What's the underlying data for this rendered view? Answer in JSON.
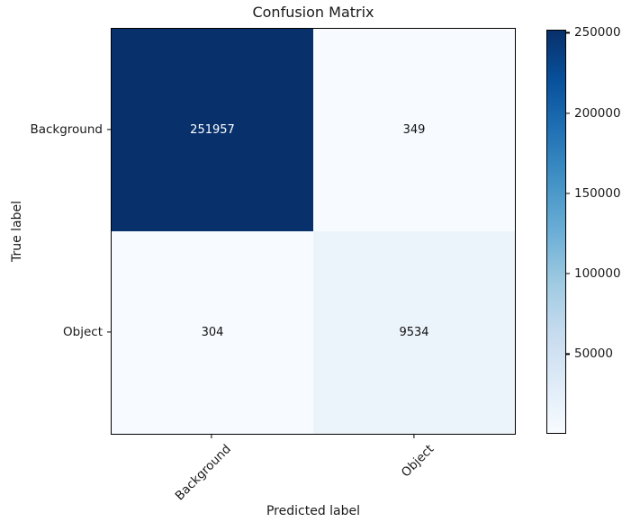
{
  "figure": {
    "title": "Confusion Matrix",
    "xlabel": "Predicted label",
    "ylabel": "True label"
  },
  "chart_data": {
    "type": "heatmap",
    "title": "Confusion Matrix",
    "xlabel": "Predicted label",
    "ylabel": "True label",
    "x_categories": [
      "Background",
      "Object"
    ],
    "y_categories": [
      "Background",
      "Object"
    ],
    "matrix": [
      [
        251957,
        349
      ],
      [
        304,
        9534
      ]
    ],
    "vmin": 304,
    "vmax": 251957,
    "colormap": "Blues",
    "legend_position": "right-colorbar",
    "grid": false,
    "colorbar_ticks": [
      50000,
      100000,
      150000,
      200000,
      250000
    ],
    "colormap_stops": [
      "#f7fbff",
      "#deebf7",
      "#c6dbef",
      "#9ecae1",
      "#6baed6",
      "#4292c6",
      "#2171b5",
      "#08519c",
      "#08306b"
    ],
    "cell_colors": [
      [
        "#08306b",
        "#f7fbff"
      ],
      [
        "#f7fbff",
        "#ecf4fb"
      ]
    ],
    "cell_text_colors": [
      [
        "#ffffff",
        "#111111"
      ],
      [
        "#111111",
        "#111111"
      ]
    ],
    "axis_color": "#000000"
  }
}
